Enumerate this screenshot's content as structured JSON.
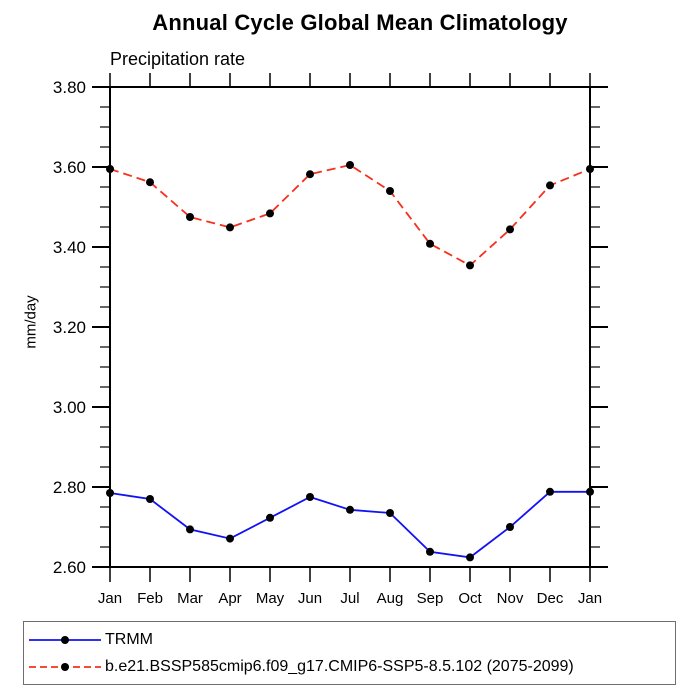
{
  "chart_data": {
    "type": "line",
    "title": "Annual Cycle Global Mean Climatology",
    "subtitle": "Precipitation rate",
    "ylabel": "mm/day",
    "xlabel": "",
    "ylim": [
      2.6,
      3.8
    ],
    "ytick_major": 0.2,
    "ytick_minor": 0.05,
    "ytick_labels": [
      "3.80",
      "3.60",
      "3.40",
      "3.20",
      "3.00",
      "2.80",
      "2.60"
    ],
    "grid": false,
    "legend_position": "bottom",
    "marker_color": "#000000",
    "axis_color": "#000000",
    "categories": [
      "Jan",
      "Feb",
      "Mar",
      "Apr",
      "May",
      "Jun",
      "Jul",
      "Aug",
      "Sep",
      "Oct",
      "Nov",
      "Dec",
      "Jan"
    ],
    "series": [
      {
        "name": "TRMM",
        "color": "#1212f5",
        "line_style": "solid",
        "dash": null,
        "values": [
          2.785,
          2.77,
          2.694,
          2.671,
          2.723,
          2.775,
          2.743,
          2.735,
          2.638,
          2.624,
          2.7,
          2.788,
          2.788
        ]
      },
      {
        "name": "b.e21.BSSP585cmip6.f09_g17.CMIP6-SSP5-8.5.102 (2075-2099)",
        "color": "#f5301e",
        "line_style": "dashed",
        "dash": "9 5",
        "values": [
          3.595,
          3.562,
          3.475,
          3.449,
          3.484,
          3.582,
          3.605,
          3.54,
          3.408,
          3.354,
          3.444,
          3.554,
          3.595
        ]
      }
    ]
  }
}
